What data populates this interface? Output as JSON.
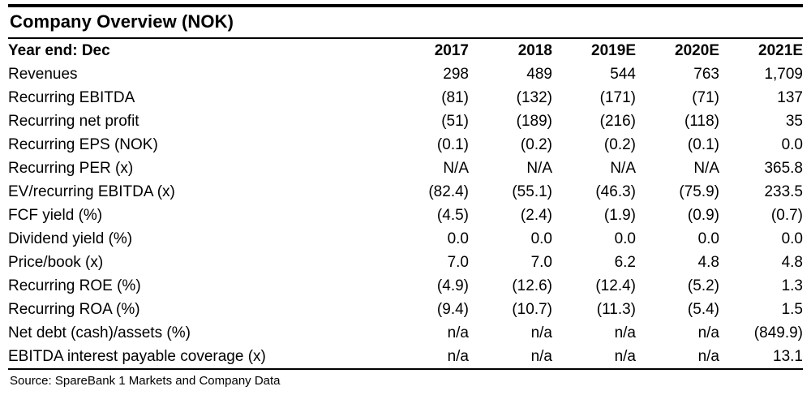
{
  "table": {
    "title": "Company Overview (NOK)",
    "header": {
      "label": "Year end: Dec",
      "years": [
        "2017",
        "2018",
        "2019E",
        "2020E",
        "2021E"
      ]
    },
    "rows": [
      {
        "label": "Revenues",
        "values": [
          "298",
          "489",
          "544",
          "763",
          "1,709"
        ]
      },
      {
        "label": "Recurring EBITDA",
        "values": [
          "(81)",
          "(132)",
          "(171)",
          "(71)",
          "137"
        ]
      },
      {
        "label": "Recurring net profit",
        "values": [
          "(51)",
          "(189)",
          "(216)",
          "(118)",
          "35"
        ]
      },
      {
        "label": "Recurring EPS (NOK)",
        "values": [
          "(0.1)",
          "(0.2)",
          "(0.2)",
          "(0.1)",
          "0.0"
        ]
      },
      {
        "label": "Recurring PER (x)",
        "values": [
          "N/A",
          "N/A",
          "N/A",
          "N/A",
          "365.8"
        ]
      },
      {
        "label": "EV/recurring EBITDA (x)",
        "values": [
          "(82.4)",
          "(55.1)",
          "(46.3)",
          "(75.9)",
          "233.5"
        ]
      },
      {
        "label": "FCF yield (%)",
        "values": [
          "(4.5)",
          "(2.4)",
          "(1.9)",
          "(0.9)",
          "(0.7)"
        ]
      },
      {
        "label": "Dividend yield (%)",
        "values": [
          "0.0",
          "0.0",
          "0.0",
          "0.0",
          "0.0"
        ]
      },
      {
        "label": "Price/book (x)",
        "values": [
          "7.0",
          "7.0",
          "6.2",
          "4.8",
          "4.8"
        ]
      },
      {
        "label": "Recurring ROE (%)",
        "values": [
          "(4.9)",
          "(12.6)",
          "(12.4)",
          "(5.2)",
          "1.3"
        ]
      },
      {
        "label": "Recurring ROA (%)",
        "values": [
          "(9.4)",
          "(10.7)",
          "(11.3)",
          "(5.4)",
          "1.5"
        ]
      },
      {
        "label": "Net debt (cash)/assets (%)",
        "values": [
          "n/a",
          "n/a",
          "n/a",
          "n/a",
          "(849.9)"
        ]
      },
      {
        "label": "EBITDA interest payable coverage (x)",
        "values": [
          "n/a",
          "n/a",
          "n/a",
          "n/a",
          "13.1"
        ]
      }
    ],
    "source": "Source: SpareBank 1 Markets and Company Data"
  },
  "colors": {
    "text": "#000000",
    "rule": "#000000",
    "background": "#ffffff"
  }
}
